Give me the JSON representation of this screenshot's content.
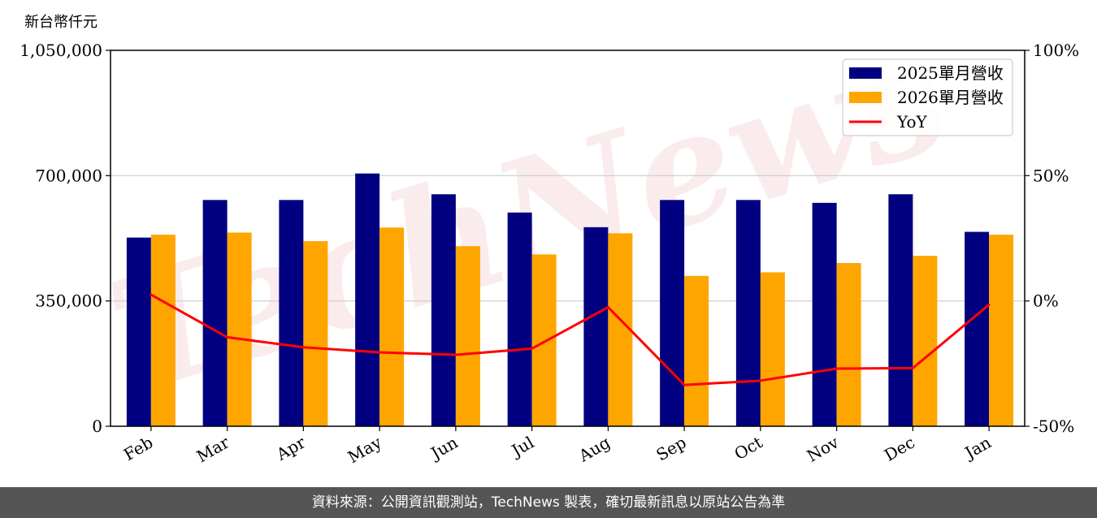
{
  "chart_data": {
    "type": "bar",
    "unit_label": "新台幣仟元",
    "categories": [
      "Feb",
      "Mar",
      "Apr",
      "May",
      "Jun",
      "Jul",
      "Aug",
      "Sep",
      "Oct",
      "Nov",
      "Dec",
      "Jan"
    ],
    "series": [
      {
        "name": "2025單月營收",
        "type": "bar",
        "color": "#000080",
        "values": [
          527000,
          632000,
          632000,
          706000,
          648000,
          597000,
          556000,
          632000,
          632000,
          624000,
          648000,
          543000
        ]
      },
      {
        "name": "2026單月營收",
        "type": "bar",
        "color": "#ffa500",
        "values": [
          535000,
          541000,
          517000,
          555000,
          503000,
          480000,
          539000,
          420000,
          430000,
          456000,
          476000,
          535000
        ]
      },
      {
        "name": "YoY",
        "type": "line",
        "axis": "right",
        "color": "#ff0000",
        "values": [
          2.5,
          -14.5,
          -18.5,
          -20.5,
          -21.5,
          -19,
          -2.5,
          -33.5,
          -31.8,
          -27,
          -26.8,
          -1.5
        ]
      }
    ],
    "y_left": {
      "min": 0,
      "max": 1050000,
      "ticks": [
        0,
        350000,
        700000,
        1050000
      ],
      "tick_labels": [
        "0",
        "350,000",
        "700,000",
        "1,050,000"
      ]
    },
    "y_right": {
      "min": -50,
      "max": 100,
      "ticks": [
        -50,
        0,
        50,
        100
      ],
      "tick_labels": [
        "-50%",
        "0%",
        "50%",
        "100%"
      ]
    },
    "grid": "horizontal",
    "legend_position": "top-right"
  },
  "watermark": "TechNews",
  "footer": "資料來源：公開資訊觀測站，TechNews 製表，確切最新訊息以原站公告為準"
}
